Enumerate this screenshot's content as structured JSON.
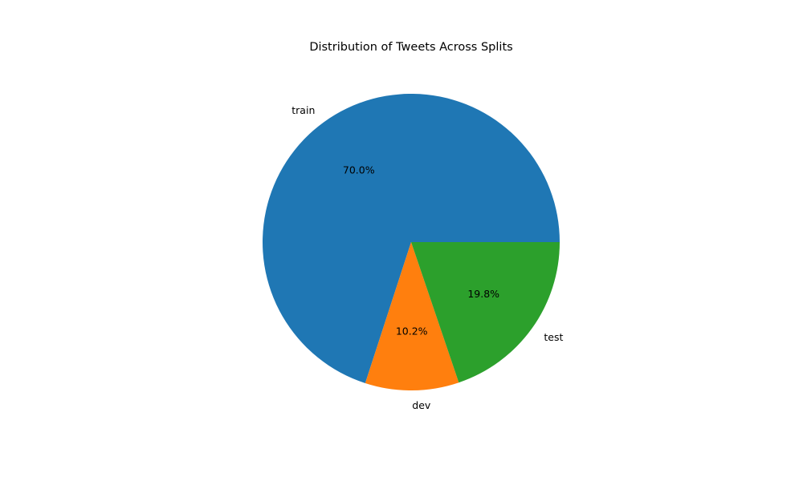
{
  "chart_data": {
    "type": "pie",
    "title": "Distribution of Tweets Across Splits",
    "categories": [
      "train",
      "dev",
      "test"
    ],
    "values": [
      70.0,
      10.2,
      19.8
    ],
    "percent_labels": [
      "70.0%",
      "10.2%",
      "19.8%"
    ],
    "colors": [
      "#1f77b4",
      "#ff7f0e",
      "#2ca02c"
    ],
    "start_angle": 0,
    "direction": "counterclockwise"
  }
}
